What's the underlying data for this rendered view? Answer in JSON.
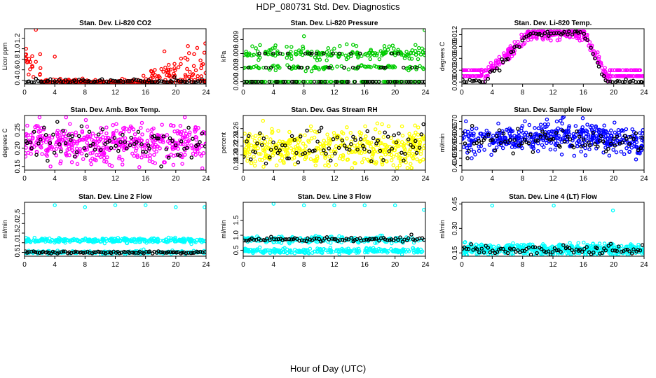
{
  "figure": {
    "title": "HDP_080731  Std. Dev. Diagnostics",
    "xlabel": "Hour of Day (UTC)"
  },
  "chart_data": [
    {
      "type": "scatter",
      "title": "Stan. Dev. Li-820 CO2",
      "ylabel": "Licor ppm",
      "xlim": [
        0,
        24
      ],
      "ylim": [
        0.33,
        1.38
      ],
      "xticks": [
        "0",
        "4",
        "8",
        "12",
        "16",
        "20",
        "24"
      ],
      "yticks": [
        "0.4",
        "0.6",
        "0.8",
        "1.0",
        "1.2"
      ],
      "ytick_values": [
        0.4,
        0.6,
        0.8,
        1.0,
        1.2
      ],
      "series": [
        {
          "name": "red",
          "color": "#ff0000",
          "model": "co2_red"
        },
        {
          "name": "black",
          "color": "#000000",
          "model": "co2_black"
        }
      ],
      "points_visible_outliers": [
        [
          1.5,
          1.36
        ],
        [
          0.2,
          1.0
        ],
        [
          4.0,
          0.85
        ],
        [
          23.9,
          1.1
        ],
        [
          21.6,
          1.05
        ],
        [
          18.5,
          0.95
        ]
      ]
    },
    {
      "type": "scatter",
      "title": "Stan. Dev. Li-820 Pressure",
      "ylabel": "kPa",
      "xlim": [
        0,
        24
      ],
      "ylim": [
        -0.0005,
        0.0113
      ],
      "xticks": [
        "0",
        "4",
        "8",
        "12",
        "16",
        "20",
        "24"
      ],
      "yticks": [
        "0.000",
        "0.003",
        "0.006",
        "0.009"
      ],
      "ytick_values": [
        0.0,
        0.003,
        0.006,
        0.009
      ],
      "series": [
        {
          "name": "green",
          "color": "#00cc00",
          "model": "press_green"
        },
        {
          "name": "black",
          "color": "#000000",
          "model": "press_black"
        }
      ],
      "points_visible_outliers": [
        [
          8.0,
          0.0097
        ],
        [
          23.9,
          0.011
        ],
        [
          18.6,
          0.0076
        ]
      ]
    },
    {
      "type": "scatter",
      "title": "Stan. Dev. Li-820 Temp.",
      "ylabel": "degrees C",
      "xlim": [
        0,
        24
      ],
      "ylim": [
        -0.0005,
        0.0135
      ],
      "xticks": [
        "0",
        "4",
        "8",
        "12",
        "16",
        "20",
        "24"
      ],
      "yticks": [
        "0.000",
        "0.003",
        "0.006",
        "0.009",
        "0.012"
      ],
      "ytick_values": [
        0.0,
        0.003,
        0.006,
        0.009,
        0.012
      ],
      "series": [
        {
          "name": "magenta",
          "color": "#ff00ff",
          "model": "temp_magenta"
        },
        {
          "name": "black",
          "color": "#000000",
          "model": "temp_black"
        }
      ]
    },
    {
      "type": "scatter",
      "title": "Stan. Dev. Amb. Box Temp.",
      "ylabel": "degrees C",
      "xlim": [
        0,
        24
      ],
      "ylim": [
        0.14,
        0.29
      ],
      "xticks": [
        "0",
        "4",
        "8",
        "12",
        "16",
        "20",
        "24"
      ],
      "yticks": [
        "0.15",
        "0.20",
        "0.25"
      ],
      "ytick_values": [
        0.15,
        0.2,
        0.25
      ],
      "series": [
        {
          "name": "magenta",
          "color": "#ff00ff",
          "model": "amb_magenta"
        },
        {
          "name": "black",
          "color": "#000000",
          "model": "amb_black"
        }
      ]
    },
    {
      "type": "scatter",
      "title": "Stan. Dev. Gas Stream RH",
      "ylabel": "percent",
      "xlim": [
        0,
        24
      ],
      "ylim": [
        0.165,
        0.29
      ],
      "xticks": [
        "0",
        "4",
        "8",
        "12",
        "16",
        "20",
        "24"
      ],
      "yticks": [
        "0.18",
        "0.20",
        "0.22",
        "0.24",
        "0.26"
      ],
      "ytick_values": [
        0.18,
        0.2,
        0.22,
        0.24,
        0.26
      ],
      "series": [
        {
          "name": "yellow",
          "color": "#ffff00",
          "model": "rh_yellow"
        },
        {
          "name": "black",
          "color": "#000000",
          "model": "rh_black"
        }
      ]
    },
    {
      "type": "scatter",
      "title": "Stan. Dev. Sample Flow",
      "ylabel": "ml/min",
      "xlim": [
        0,
        24
      ],
      "ylim": [
        0.37,
        0.74
      ],
      "xticks": [
        "0",
        "4",
        "8",
        "12",
        "16",
        "20",
        "24"
      ],
      "yticks": [
        "0.40",
        "0.45",
        "0.50",
        "0.55",
        "0.60",
        "0.65",
        "0.70"
      ],
      "ytick_values": [
        0.4,
        0.45,
        0.5,
        0.55,
        0.6,
        0.65,
        0.7
      ],
      "series": [
        {
          "name": "blue",
          "color": "#0000ff",
          "model": "flow_blue"
        },
        {
          "name": "black",
          "color": "#000000",
          "model": "flow_black"
        }
      ]
    },
    {
      "type": "scatter",
      "title": "Stan. Dev. Line 2 Flow",
      "ylabel": "ml/min",
      "xlim": [
        0,
        24
      ],
      "ylim": [
        0.3,
        3.1
      ],
      "xticks": [
        "0",
        "4",
        "8",
        "12",
        "16",
        "20",
        "24"
      ],
      "yticks": [
        "0.5",
        "1.0",
        "1.5",
        "2.0",
        "2.5"
      ],
      "ytick_values": [
        0.5,
        1.0,
        1.5,
        2.0,
        2.5
      ],
      "series": [
        {
          "name": "cyan",
          "color": "#00ffff",
          "model": "l2_cyan"
        },
        {
          "name": "black",
          "color": "#000000",
          "model": "l2_black"
        }
      ],
      "points_visible_outliers": [
        [
          4.0,
          2.95
        ],
        [
          8.0,
          2.85
        ],
        [
          12.0,
          2.95
        ],
        [
          16.0,
          2.95
        ],
        [
          20.0,
          2.85
        ],
        [
          23.8,
          2.85
        ]
      ]
    },
    {
      "type": "scatter",
      "title": "Stan. Dev. Line 3 Flow",
      "ylabel": "ml/min",
      "xlim": [
        0,
        24
      ],
      "ylim": [
        0.3,
        2.1
      ],
      "xticks": [
        "0",
        "4",
        "8",
        "12",
        "16",
        "20",
        "24"
      ],
      "yticks": [
        "0.5",
        "1.0",
        "1.5"
      ],
      "ytick_values": [
        0.5,
        1.0,
        1.5
      ],
      "series": [
        {
          "name": "cyan",
          "color": "#00ffff",
          "model": "l3_cyan"
        },
        {
          "name": "black",
          "color": "#000000",
          "model": "l3_black"
        }
      ],
      "points_visible_outliers": [
        [
          4.0,
          2.05
        ],
        [
          8.0,
          2.0
        ],
        [
          12.0,
          2.0
        ],
        [
          16.0,
          2.0
        ],
        [
          20.0,
          2.0
        ],
        [
          23.8,
          1.85
        ]
      ]
    },
    {
      "type": "scatter",
      "title": "Stan. Dev. Line 4 (LT) Flow",
      "ylabel": "ml/min",
      "xlim": [
        0,
        24
      ],
      "ylim": [
        0.13,
        0.46
      ],
      "xticks": [
        "0",
        "4",
        "8",
        "12",
        "16",
        "20",
        "24"
      ],
      "yticks": [
        "0.15",
        "0.30",
        "0.45"
      ],
      "ytick_values": [
        0.15,
        0.3,
        0.45
      ],
      "series": [
        {
          "name": "cyan",
          "color": "#00ffff",
          "model": "l4_cyan"
        },
        {
          "name": "black",
          "color": "#000000",
          "model": "l4_black"
        }
      ],
      "points_visible_outliers": [
        [
          4.0,
          0.44
        ],
        [
          12.1,
          0.44
        ],
        [
          19.9,
          0.41
        ]
      ]
    }
  ]
}
